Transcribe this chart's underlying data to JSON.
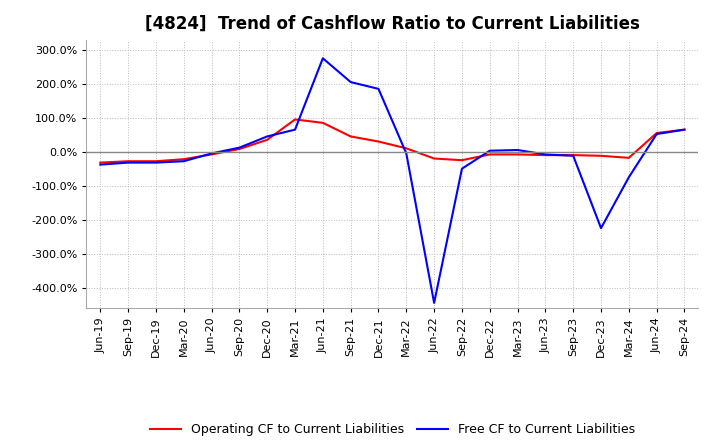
{
  "title": "[4824]  Trend of Cashflow Ratio to Current Liabilities",
  "x_labels": [
    "Jun-19",
    "Sep-19",
    "Dec-19",
    "Mar-20",
    "Jun-20",
    "Sep-20",
    "Dec-20",
    "Mar-21",
    "Jun-21",
    "Sep-21",
    "Dec-21",
    "Mar-22",
    "Jun-22",
    "Sep-22",
    "Dec-22",
    "Mar-23",
    "Jun-23",
    "Sep-23",
    "Dec-23",
    "Mar-24",
    "Jun-24",
    "Sep-24"
  ],
  "operating_cf": [
    -0.32,
    -0.28,
    -0.28,
    -0.22,
    -0.08,
    0.08,
    0.35,
    0.95,
    0.85,
    0.45,
    0.3,
    0.1,
    -0.2,
    -0.25,
    -0.08,
    -0.08,
    -0.1,
    -0.1,
    -0.12,
    -0.18,
    0.55,
    0.65
  ],
  "free_cf": [
    -0.38,
    -0.32,
    -0.32,
    -0.28,
    -0.05,
    0.12,
    0.45,
    0.65,
    2.75,
    2.05,
    1.85,
    -0.05,
    -4.45,
    -0.5,
    0.03,
    0.05,
    -0.08,
    -0.12,
    -2.25,
    -0.75,
    0.52,
    0.65
  ],
  "ylim": [
    -4.6,
    3.3
  ],
  "yticks": [
    3.0,
    2.0,
    1.0,
    0.0,
    -1.0,
    -2.0,
    -3.0,
    -4.0
  ],
  "operating_color": "#ff0000",
  "free_color": "#0000ff",
  "grid_color": "#bbbbbb",
  "zero_line_color": "#888888",
  "background_color": "#ffffff",
  "title_fontsize": 12,
  "legend_fontsize": 9,
  "tick_fontsize": 8
}
